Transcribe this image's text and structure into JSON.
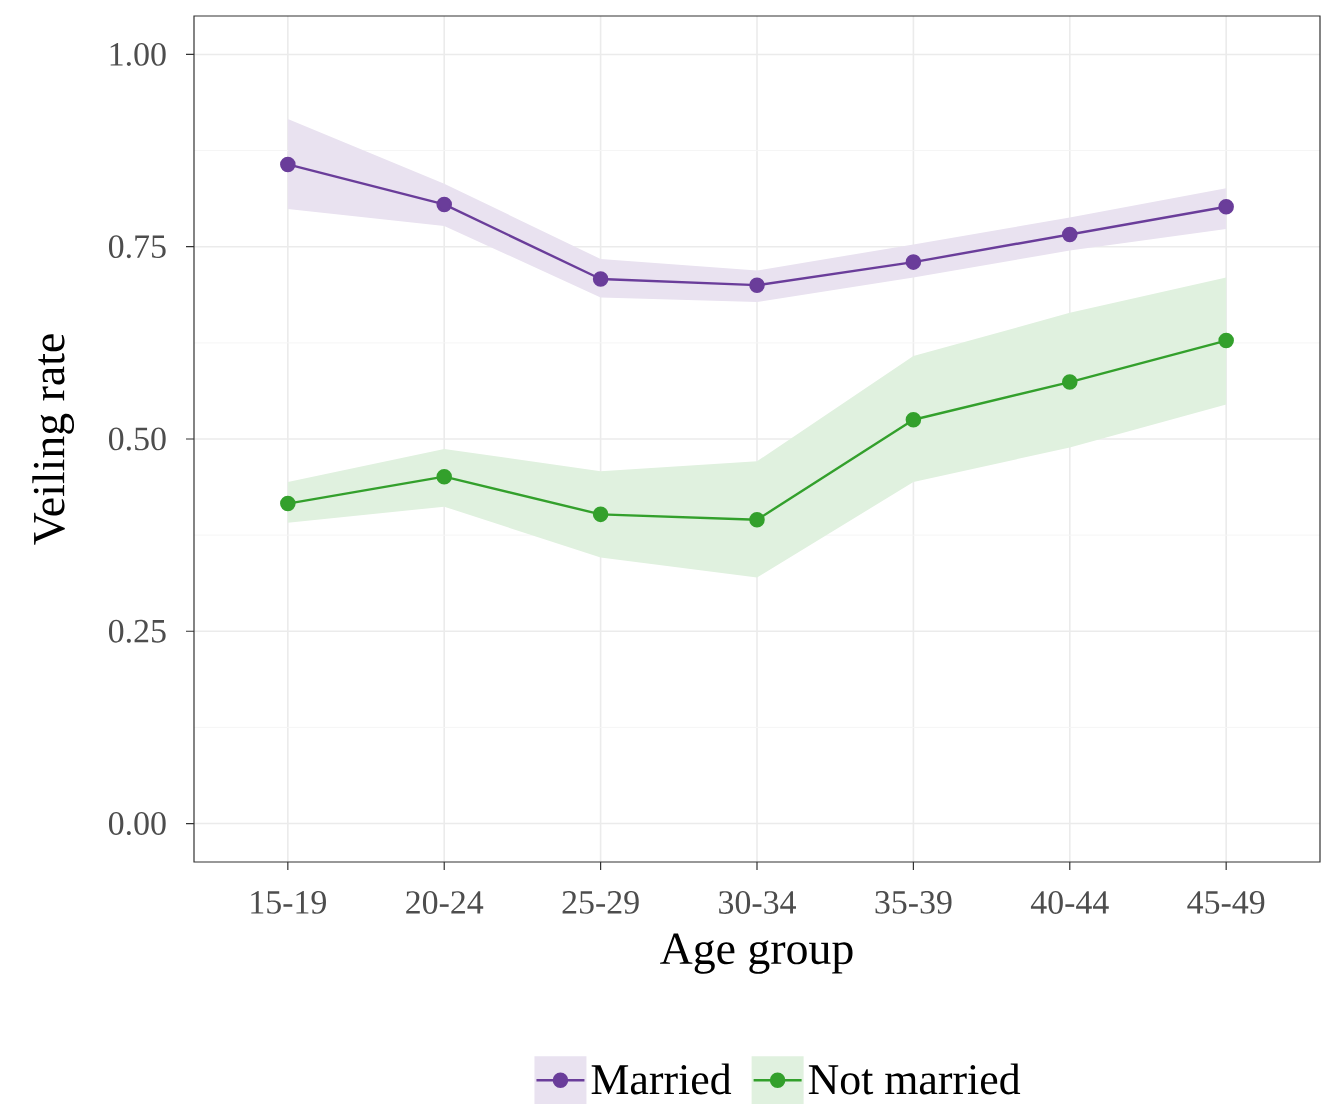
{
  "chart_data": {
    "type": "line",
    "xlabel": "Age group",
    "ylabel": "Veiling rate",
    "categories": [
      "15-19",
      "20-24",
      "25-29",
      "30-34",
      "35-39",
      "40-44",
      "45-49"
    ],
    "series": [
      {
        "name": "Married",
        "color": "#6a3d9a",
        "values": [
          0.857,
          0.805,
          0.708,
          0.7,
          0.73,
          0.766,
          0.802
        ],
        "lower": [
          0.799,
          0.777,
          0.684,
          0.678,
          0.71,
          0.745,
          0.773
        ],
        "upper": [
          0.916,
          0.832,
          0.734,
          0.719,
          0.753,
          0.788,
          0.826
        ]
      },
      {
        "name": "Not married",
        "color": "#33a02c",
        "values": [
          0.416,
          0.451,
          0.402,
          0.395,
          0.525,
          0.574,
          0.628
        ],
        "lower": [
          0.391,
          0.412,
          0.346,
          0.32,
          0.444,
          0.489,
          0.545
        ],
        "upper": [
          0.444,
          0.487,
          0.458,
          0.471,
          0.608,
          0.664,
          0.71
        ]
      }
    ],
    "ylim": [
      -0.05,
      1.05
    ],
    "yticks": [
      {
        "value": 0,
        "label": "0.00"
      },
      0.25,
      {
        "value": 0.5,
        "label": "0.50"
      },
      0.75,
      {
        "value": 1,
        "label": "1.00"
      }
    ],
    "grid": true,
    "legend": "bottom",
    "marker": "circle",
    "line_style": "solid"
  }
}
